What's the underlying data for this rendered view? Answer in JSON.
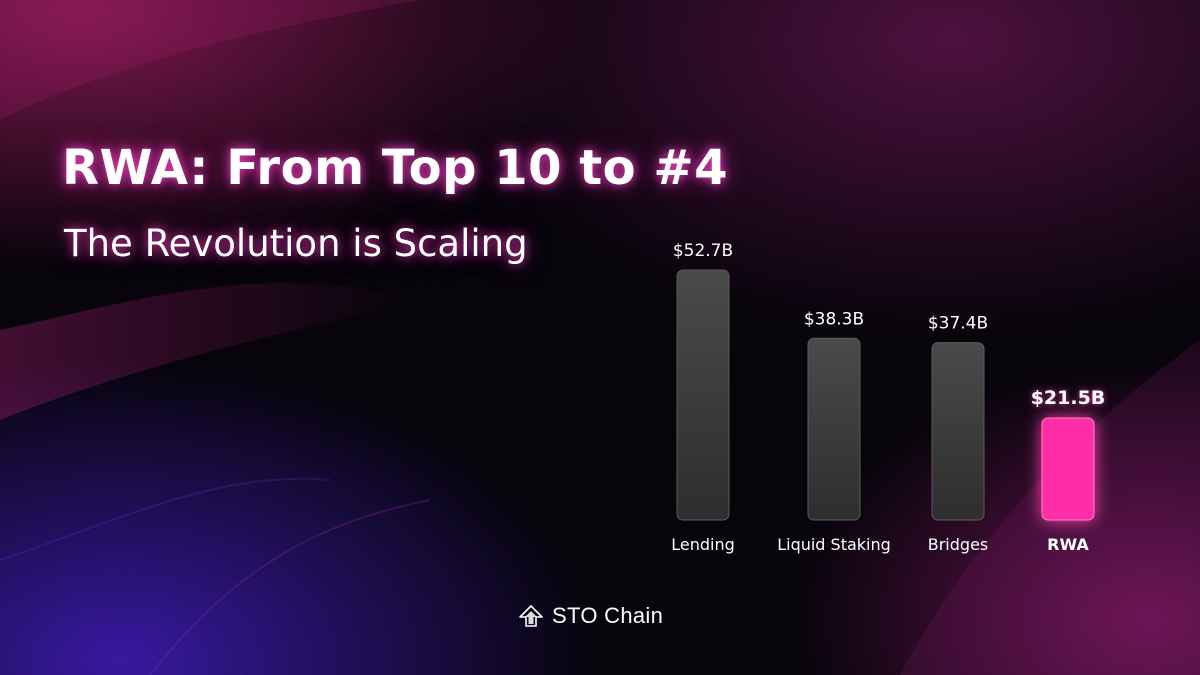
{
  "header": {
    "title": "RWA: From Top 10 to #4",
    "subtitle": "The Revolution is Scaling"
  },
  "brand": {
    "name": "STO Chain",
    "logo_icon": "sto-chain-arrow-logo"
  },
  "colors": {
    "bar_default": "#3d3d3d",
    "bar_highlight": "#ff2fa6",
    "text": "#ffffff",
    "baseline": "#ff2fa6"
  },
  "chart_data": {
    "type": "bar",
    "categories": [
      "Lending",
      "Liquid Staking",
      "Bridges",
      "RWA"
    ],
    "values": [
      52.7,
      38.3,
      37.4,
      21.5
    ],
    "data_labels": [
      "$52.7B",
      "$38.3B",
      "$37.4B",
      "$21.5B"
    ],
    "highlight_category": "RWA",
    "ylim": [
      0,
      55
    ],
    "grid": false,
    "legend": "none"
  }
}
